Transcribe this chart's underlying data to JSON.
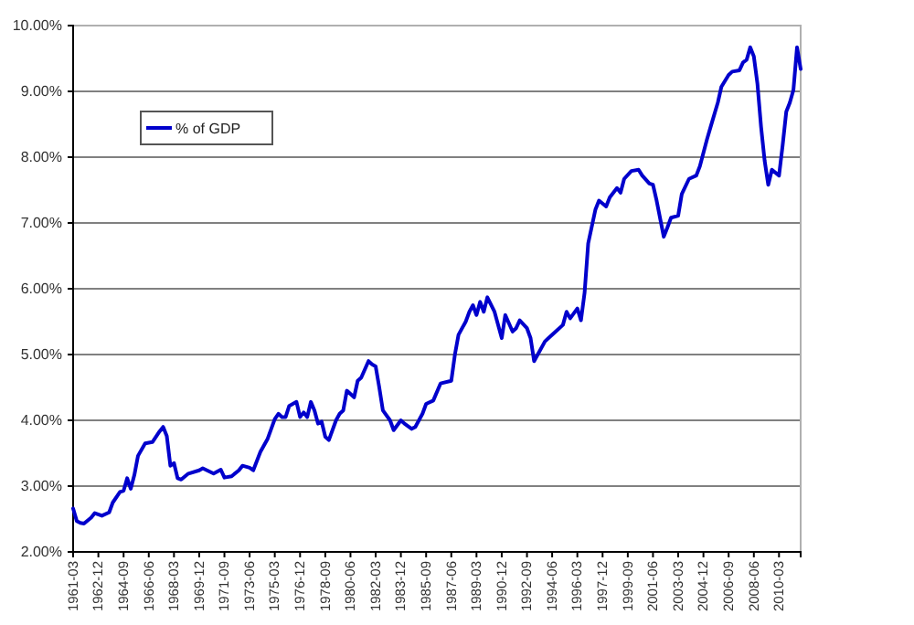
{
  "chart_data": {
    "type": "line",
    "legend": "top left",
    "grid": "y",
    "line_style": "solid",
    "x": [
      "1961-03",
      "1961-06",
      "1961-09",
      "1961-12",
      "1962-06",
      "1962-09",
      "1963-03",
      "1963-09",
      "1963-12",
      "1964-06",
      "1964-09",
      "1964-12",
      "1965-03",
      "1965-06",
      "1965-09",
      "1966-03",
      "1966-09",
      "1967-03",
      "1967-06",
      "1967-09",
      "1967-12",
      "1968-03",
      "1968-06",
      "1968-09",
      "1969-03",
      "1969-12",
      "1970-03",
      "1970-12",
      "1971-06",
      "1971-09",
      "1972-03",
      "1972-09",
      "1972-12",
      "1973-06",
      "1973-09",
      "1974-03",
      "1974-09",
      "1975-03",
      "1975-06",
      "1975-09",
      "1975-12",
      "1976-03",
      "1976-09",
      "1976-12",
      "1977-03",
      "1977-06",
      "1977-09",
      "1977-12",
      "1978-03",
      "1978-06",
      "1978-09",
      "1978-12",
      "1979-06",
      "1979-09",
      "1979-12",
      "1980-03",
      "1980-09",
      "1980-12",
      "1981-03",
      "1981-09",
      "1981-12",
      "1982-03",
      "1982-06",
      "1982-09",
      "1983-03",
      "1983-06",
      "1983-12",
      "1984-03",
      "1984-09",
      "1984-12",
      "1985-06",
      "1985-09",
      "1986-03",
      "1986-09",
      "1987-06",
      "1987-09",
      "1987-12",
      "1988-06",
      "1988-09",
      "1988-12",
      "1989-03",
      "1989-06",
      "1989-09",
      "1989-12",
      "1990-06",
      "1990-12",
      "1991-03",
      "1991-09",
      "1991-12",
      "1992-03",
      "1992-09",
      "1992-12",
      "1993-03",
      "1993-06",
      "1993-12",
      "1994-03",
      "1994-09",
      "1995-03",
      "1995-06",
      "1995-09",
      "1996-03",
      "1996-06",
      "1996-09",
      "1996-12",
      "1997-06",
      "1997-09",
      "1998-03",
      "1998-06",
      "1998-12",
      "1999-03",
      "1999-06",
      "1999-12",
      "2000-06",
      "2000-09",
      "2001-03",
      "2001-06",
      "2001-09",
      "2002-03",
      "2002-06",
      "2002-09",
      "2003-03",
      "2003-06",
      "2003-12",
      "2004-06",
      "2004-09",
      "2005-03",
      "2005-06",
      "2005-12",
      "2006-03",
      "2006-09",
      "2006-12",
      "2007-06",
      "2007-09",
      "2007-12",
      "2008-03",
      "2008-06",
      "2008-09",
      "2008-12",
      "2009-03",
      "2009-06",
      "2009-09",
      "2010-03",
      "2010-06",
      "2010-09",
      "2010-12",
      "2011-03",
      "2011-06",
      "2011-09"
    ],
    "series": [
      {
        "name": "% of GDP",
        "color": "#0000cc",
        "values": [
          2.66,
          2.47,
          2.44,
          2.43,
          2.52,
          2.59,
          2.55,
          2.6,
          2.75,
          2.91,
          2.93,
          3.12,
          2.96,
          3.17,
          3.46,
          3.65,
          3.67,
          3.83,
          3.9,
          3.76,
          3.31,
          3.35,
          3.12,
          3.1,
          3.19,
          3.24,
          3.27,
          3.19,
          3.25,
          3.13,
          3.15,
          3.24,
          3.31,
          3.28,
          3.24,
          3.52,
          3.72,
          4.02,
          4.1,
          4.05,
          4.05,
          4.22,
          4.28,
          4.05,
          4.12,
          4.05,
          4.28,
          4.15,
          3.95,
          3.98,
          3.75,
          3.7,
          4.0,
          4.1,
          4.15,
          4.45,
          4.35,
          4.6,
          4.65,
          4.9,
          4.85,
          4.82,
          4.5,
          4.15,
          4.0,
          3.85,
          4.0,
          3.95,
          3.87,
          3.9,
          4.1,
          4.25,
          4.3,
          4.56,
          4.6,
          5.0,
          5.3,
          5.5,
          5.65,
          5.75,
          5.6,
          5.8,
          5.65,
          5.87,
          5.65,
          5.25,
          5.6,
          5.35,
          5.4,
          5.52,
          5.4,
          5.25,
          4.9,
          5.0,
          5.2,
          5.25,
          5.35,
          5.45,
          5.65,
          5.55,
          5.7,
          5.52,
          5.94,
          6.69,
          7.2,
          7.34,
          7.25,
          7.39,
          7.53,
          7.46,
          7.67,
          7.79,
          7.81,
          7.72,
          7.6,
          7.58,
          7.34,
          6.79,
          6.93,
          7.08,
          7.11,
          7.44,
          7.67,
          7.72,
          7.86,
          8.27,
          8.46,
          8.83,
          9.07,
          9.25,
          9.3,
          9.32,
          9.44,
          9.48,
          9.67,
          9.53,
          9.11,
          8.46,
          7.95,
          7.58,
          7.81,
          7.72,
          8.18,
          8.69,
          8.83,
          9.02,
          9.67,
          9.34
        ]
      }
    ],
    "xlim": [
      "1961-03",
      "2011-09"
    ],
    "xticks": [
      "1961-03",
      "1962-12",
      "1964-09",
      "1966-06",
      "1968-03",
      "1969-12",
      "1971-09",
      "1973-06",
      "1975-03",
      "1976-12",
      "1978-09",
      "1980-06",
      "1982-03",
      "1983-12",
      "1985-09",
      "1987-06",
      "1989-03",
      "1990-12",
      "1992-09",
      "1994-06",
      "1996-03",
      "1997-12",
      "1999-09",
      "2001-06",
      "2003-03",
      "2004-12",
      "2006-09",
      "2008-06",
      "2010-03"
    ],
    "ylim": [
      2,
      10
    ],
    "yticks": [
      {
        "value": 2,
        "label": "2.00%"
      },
      {
        "value": 3,
        "label": "3.00%"
      },
      {
        "value": 4,
        "label": "4.00%"
      },
      {
        "value": 5,
        "label": "5.00%"
      },
      {
        "value": 6,
        "label": "6.00%"
      },
      {
        "value": 7,
        "label": "7.00%"
      },
      {
        "value": 8,
        "label": "8.00%"
      },
      {
        "value": 9,
        "label": "9.00%"
      },
      {
        "value": 10,
        "label": "10.00%"
      }
    ]
  }
}
